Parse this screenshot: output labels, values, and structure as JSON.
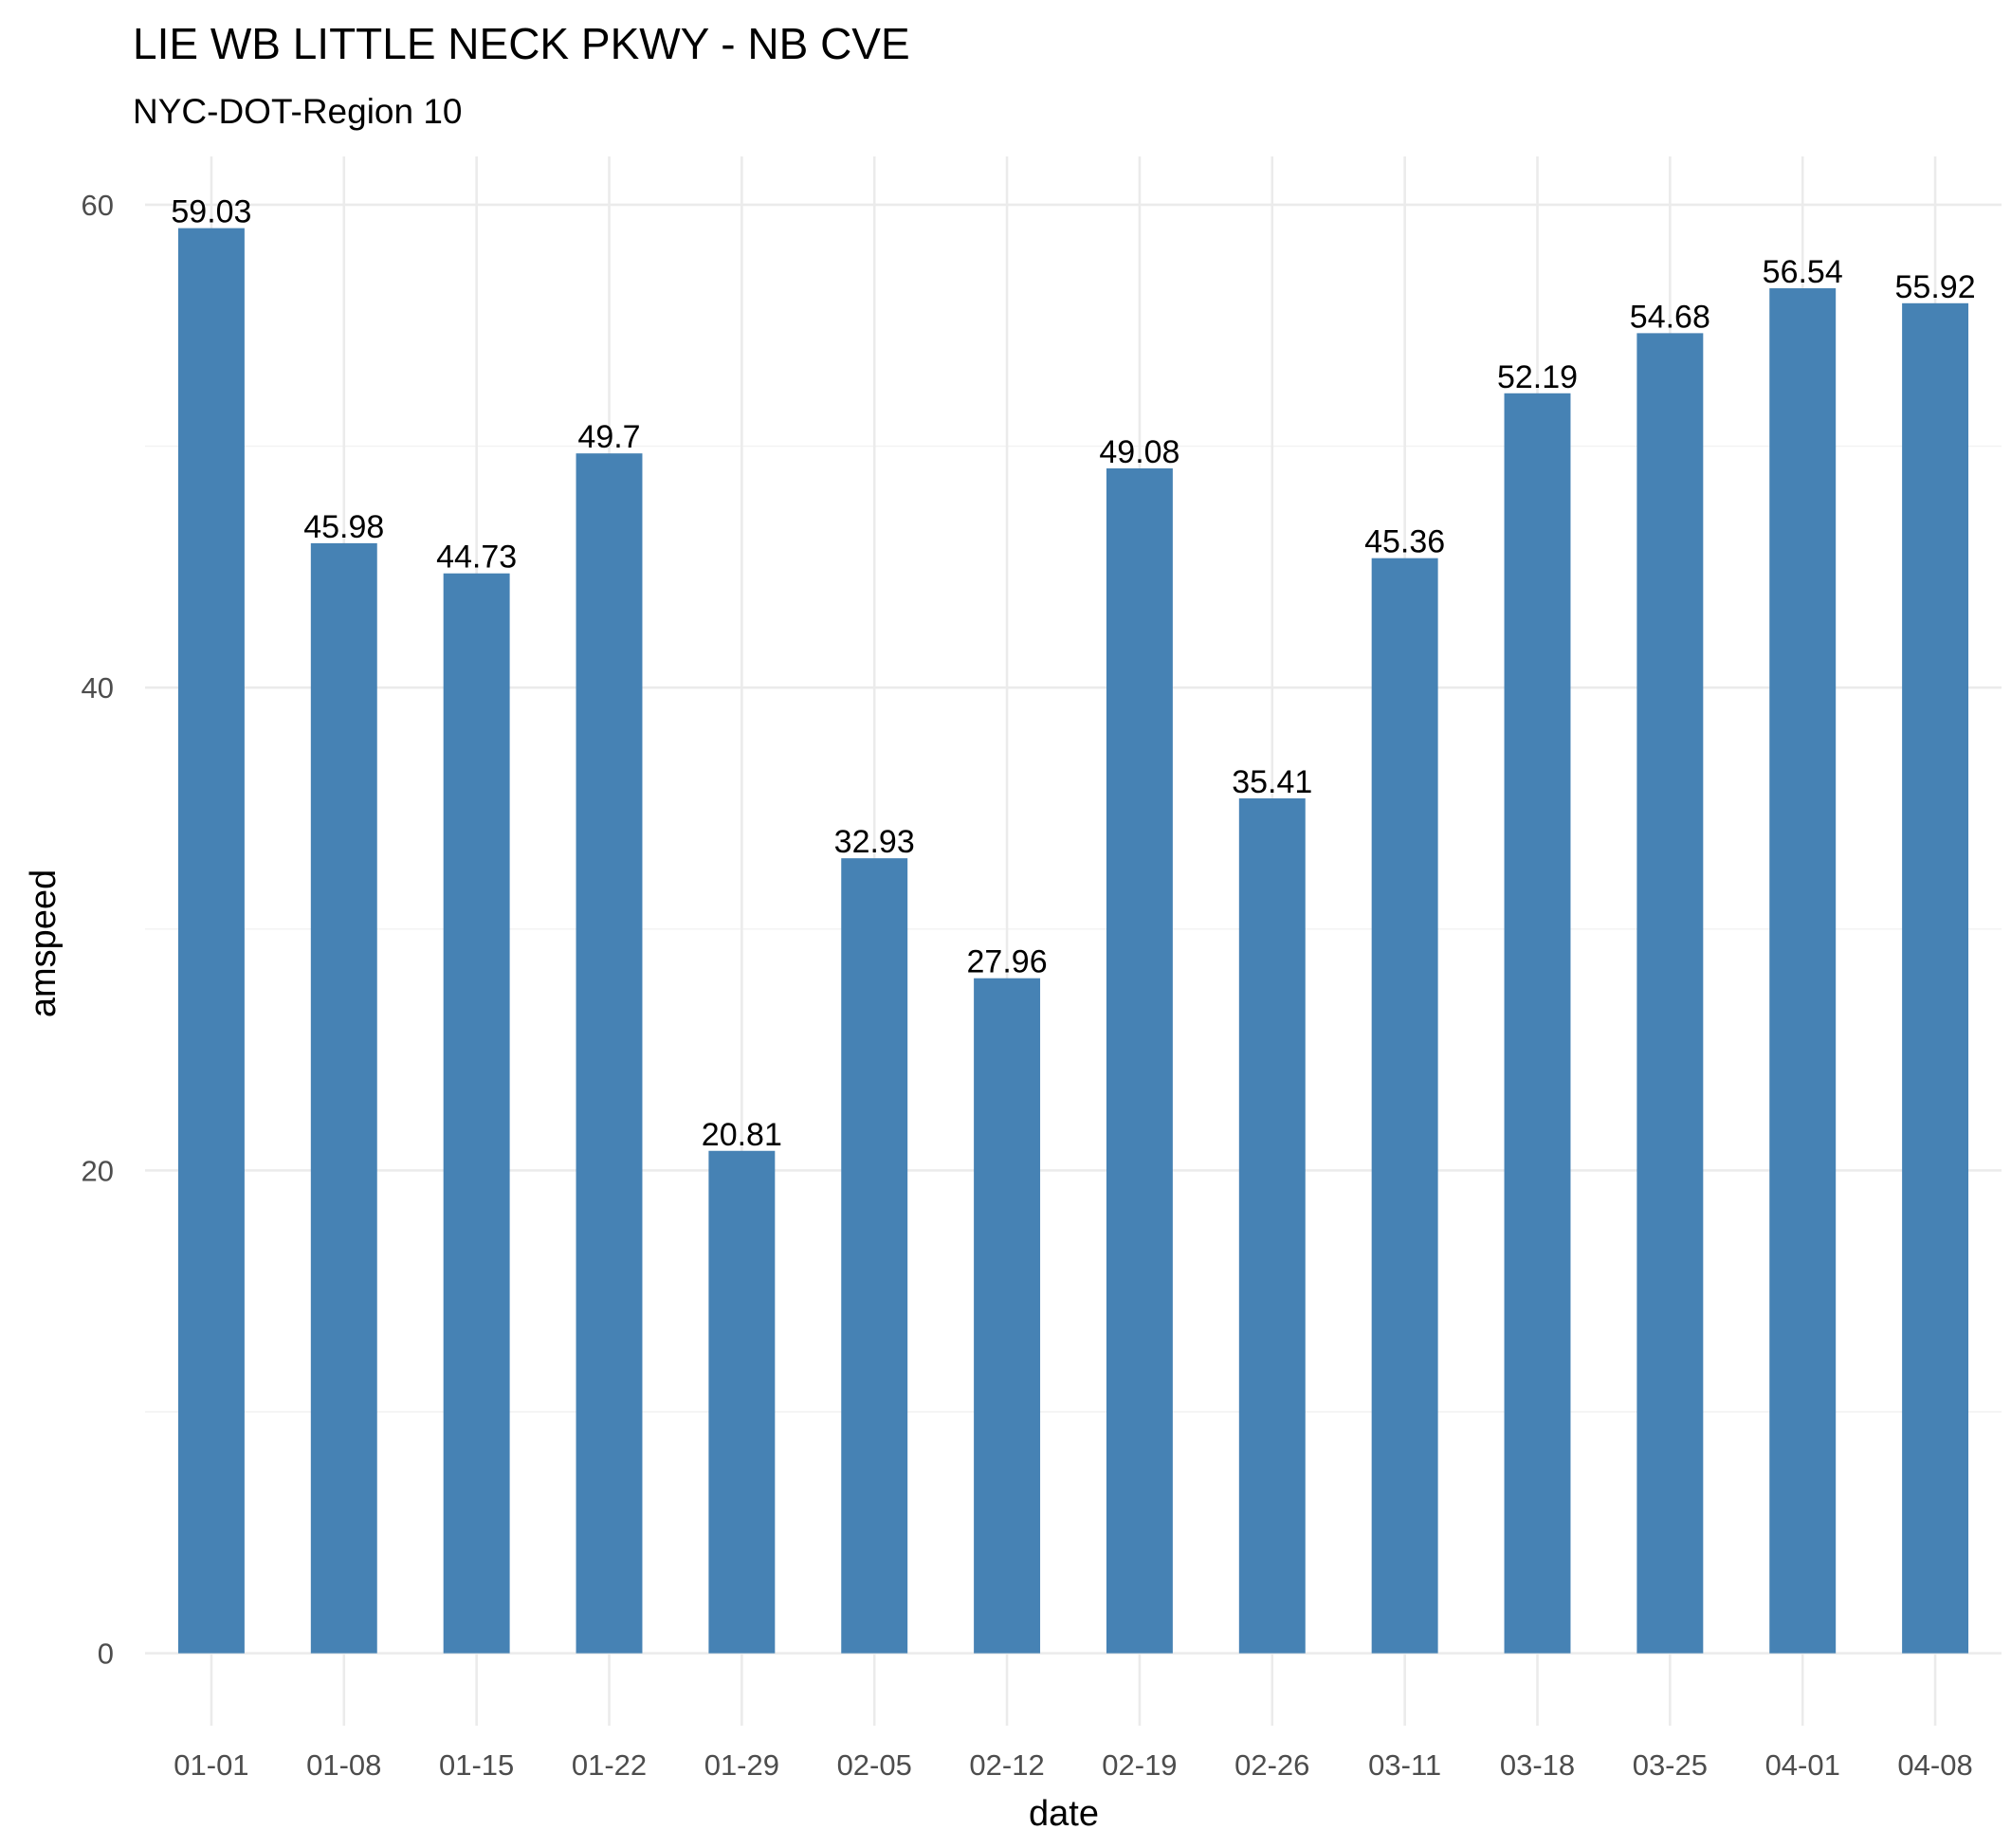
{
  "chart_data": {
    "type": "bar",
    "title": "LIE WB LITTLE NECK PKWY - NB CVE",
    "subtitle": "NYC-DOT-Region 10",
    "xlabel": "date",
    "ylabel": "amspeed",
    "categories": [
      "01-01",
      "01-08",
      "01-15",
      "01-22",
      "01-29",
      "02-05",
      "02-12",
      "02-19",
      "02-26",
      "03-11",
      "03-18",
      "03-25",
      "04-01",
      "04-08"
    ],
    "values": [
      59.03,
      45.98,
      44.73,
      49.7,
      20.81,
      32.93,
      27.96,
      49.08,
      35.41,
      45.36,
      52.19,
      54.68,
      56.54,
      55.92
    ],
    "value_labels": [
      "59.03",
      "45.98",
      "44.73",
      "49.7",
      "20.81",
      "32.93",
      "27.96",
      "49.08",
      "35.41",
      "45.36",
      "52.19",
      "54.68",
      "56.54",
      "55.92"
    ],
    "y_ticks": [
      0,
      20,
      40,
      60
    ],
    "y_tick_labels": [
      "0",
      "20",
      "40",
      "60"
    ],
    "y_minor_ticks": [
      10,
      30,
      50
    ],
    "ylim": [
      -3.0,
      62.0
    ],
    "grid": true,
    "legend": "none",
    "bar_color": "#4682b4"
  }
}
